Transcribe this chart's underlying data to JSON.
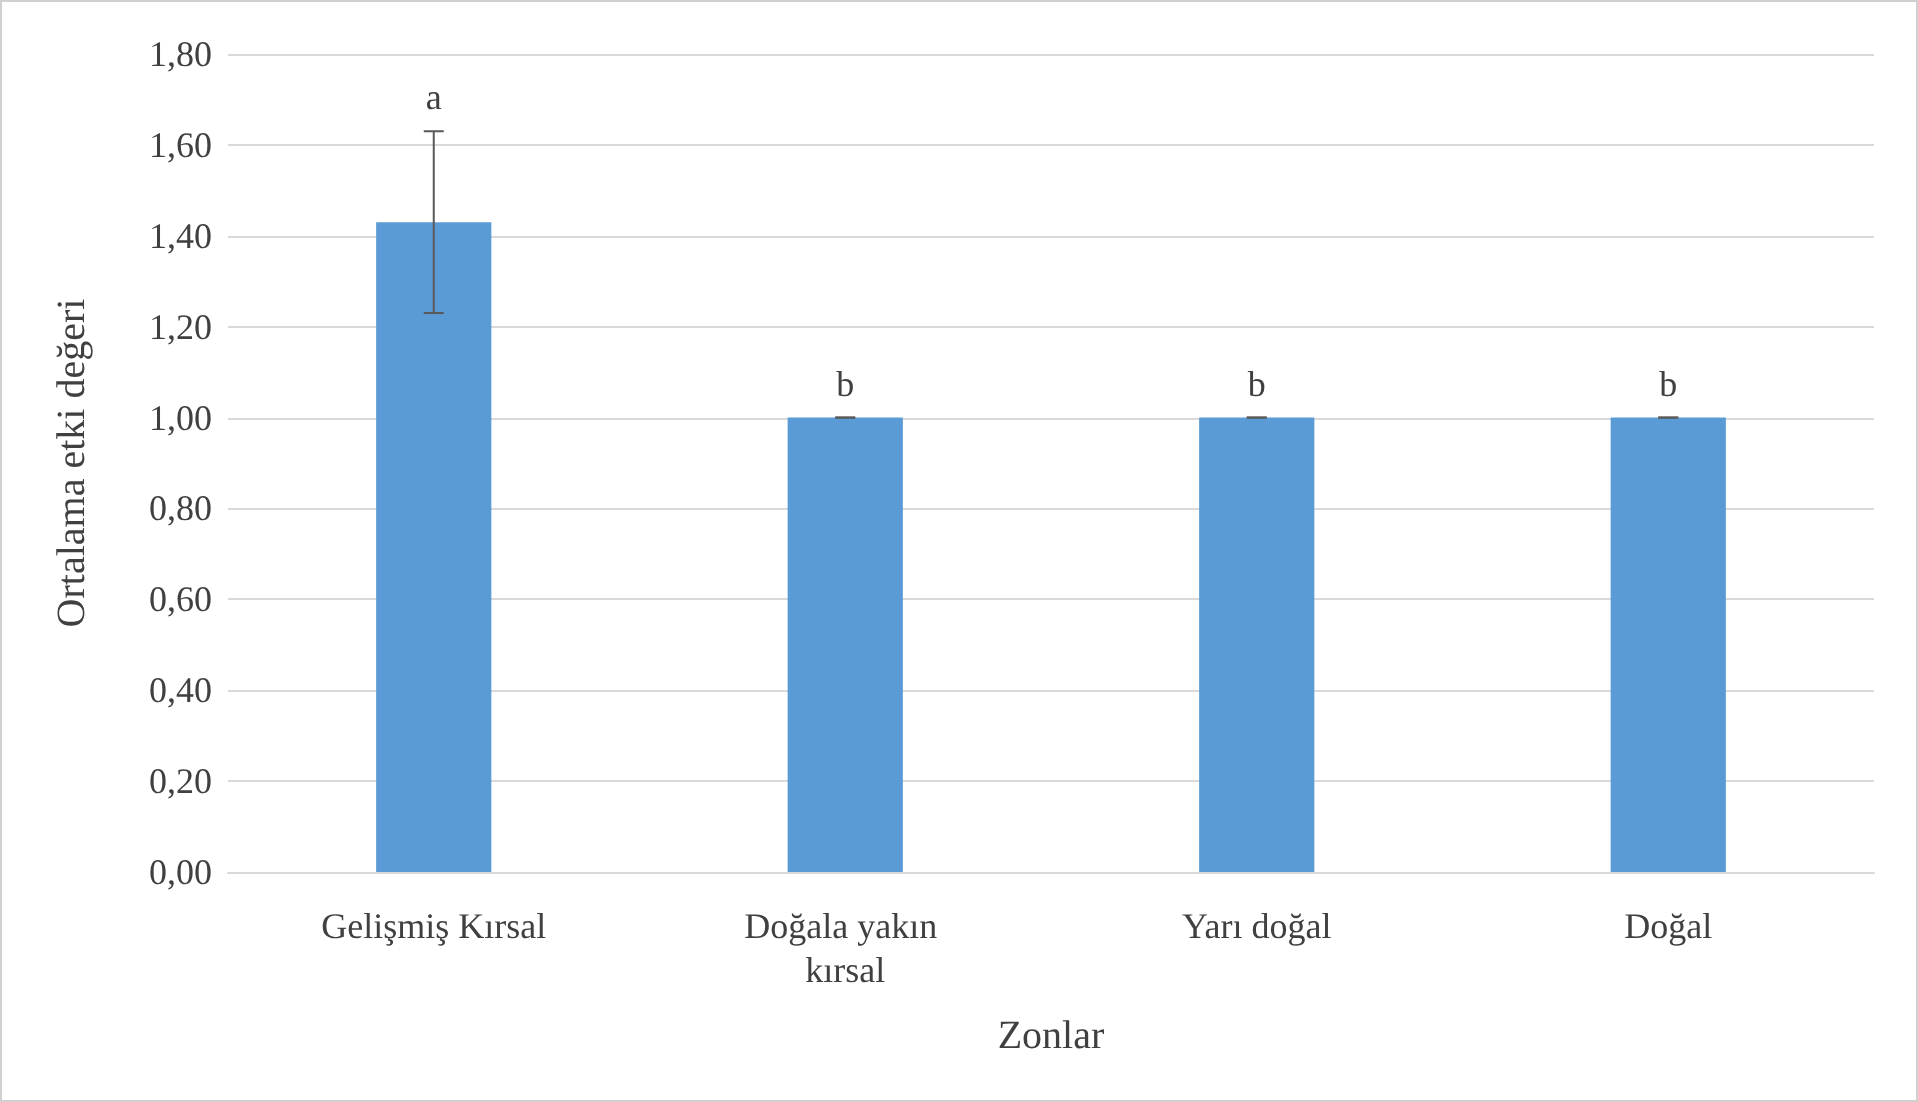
{
  "chart_data": {
    "type": "bar",
    "xlabel": "Zonlar",
    "ylabel": "Ortalama etki değeri",
    "categories": [
      "Gelişmiş Kırsal",
      "Doğala yakın kırsal",
      "Yarı doğal",
      "Doğal"
    ],
    "values": [
      1.43,
      1.0,
      1.0,
      1.0
    ],
    "color": "#5b9bd5",
    "errors": [
      0.2,
      0,
      0,
      0
    ],
    "ylim": [
      0,
      1.8
    ],
    "yticks": [
      {
        "value": 0,
        "label": "0,00"
      },
      {
        "value": 0.2,
        "label": "0,20"
      },
      {
        "value": 0.4,
        "label": "0,40"
      },
      {
        "value": 0.6,
        "label": "0,60"
      },
      {
        "value": 0.8,
        "label": "0,80"
      },
      {
        "value": 1.0,
        "label": "1,00"
      },
      {
        "value": 1.2,
        "label": "1,20"
      },
      {
        "value": 1.4,
        "label": "1,40"
      },
      {
        "value": 1.6,
        "label": "1,60"
      },
      {
        "value": 1.8,
        "label": "1,80"
      }
    ],
    "grid": "y",
    "annotations": [
      "a",
      "b",
      "b",
      "b"
    ]
  }
}
